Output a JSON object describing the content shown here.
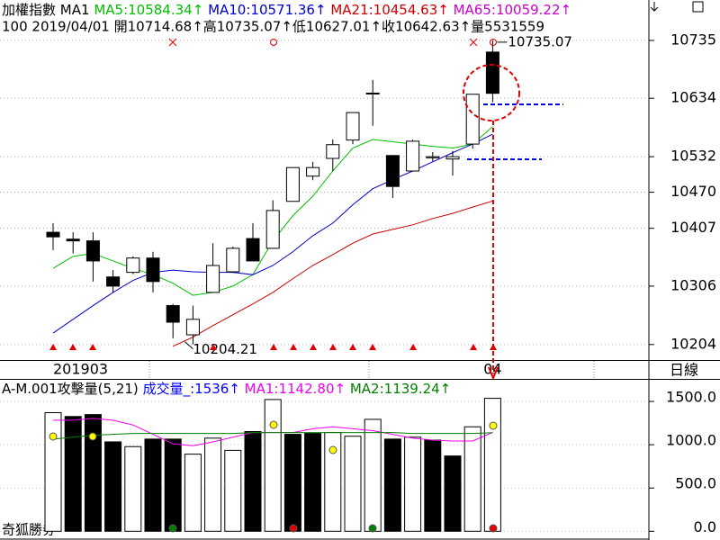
{
  "chart_data": [
    {
      "type": "candlestick",
      "title": "加權指數",
      "indicator": "MA1",
      "info": "100 2019/04/01 開10714.68↑高10735.07↑低10627.01↑收10642.63↑量5531559",
      "period": "日線",
      "categories": [
        "201903",
        null,
        null,
        null,
        null,
        null,
        null,
        null,
        null,
        null,
        null,
        null,
        null,
        null,
        null,
        null,
        null,
        null,
        null,
        null,
        null,
        null,
        "04"
      ],
      "open": [
        10400,
        10388,
        10385,
        10322,
        10330,
        10355,
        10272,
        10221,
        10295,
        10331,
        10389,
        10372,
        10454,
        10498,
        10529,
        10561,
        10642,
        10534,
        10507,
        10530,
        10528,
        10554,
        10714.68
      ],
      "high": [
        10416,
        10400,
        10400,
        10334,
        10358,
        10366,
        10275,
        10272,
        10381,
        10375,
        10416,
        10456,
        10513,
        10523,
        10562,
        10609,
        10666,
        10534,
        10562,
        10540,
        10542,
        10641,
        10735.07
      ],
      "low": [
        10369,
        10363,
        10314,
        10295,
        10327,
        10295,
        10215,
        10204.21,
        10295,
        10329,
        10350,
        10372,
        10454,
        10491,
        10507,
        10554,
        10586,
        10460,
        10507,
        10524,
        10499,
        10546,
        10627.01
      ],
      "close": [
        10392,
        10385,
        10350,
        10306,
        10355,
        10314,
        10243,
        10248,
        10342,
        10372,
        10350,
        10438,
        10513,
        10513,
        10553,
        10609,
        10643,
        10480,
        10559,
        10532,
        10532,
        10641,
        10642.63
      ],
      "up_color": "#ffffff",
      "down_color": "#000000",
      "series": [
        {
          "name": "MA5:10584.34↑",
          "color": "#00c000",
          "values": [
            10337,
            10358,
            10363,
            10350,
            10337,
            10326,
            10311,
            10290,
            10295,
            10306,
            10326,
            10385,
            10429,
            10463,
            10507,
            10547,
            10562,
            10558,
            10554,
            10550,
            10547,
            10554,
            10584.34
          ]
        },
        {
          "name": "MA10:10571.36↑",
          "color": "#0000cc",
          "values": [
            10224,
            10248,
            10272,
            10295,
            10316,
            10330,
            10334,
            10331,
            10330,
            10330,
            10326,
            10342,
            10366,
            10394,
            10416,
            10448,
            10476,
            10492,
            10507,
            10523,
            10539,
            10554,
            10571.36
          ]
        },
        {
          "name": "MA21:10454.63↑",
          "color": "#cc0000",
          "values": [
            null,
            null,
            null,
            null,
            null,
            null,
            10201,
            10217,
            10237,
            10256,
            10275,
            10295,
            10319,
            10342,
            10361,
            10381,
            10397,
            10405,
            10413,
            10424,
            10433,
            10444,
            10454.63
          ]
        },
        {
          "name": "MA65:10059.22↑",
          "color": "#cc00cc",
          "values": [
            null,
            null,
            null,
            null,
            null,
            null,
            null,
            null,
            null,
            null,
            null,
            null,
            null,
            null,
            null,
            null,
            null,
            null,
            null,
            null,
            null,
            null,
            null
          ]
        }
      ],
      "ylim": [
        10177,
        10771
      ],
      "yticks": [
        10204,
        10306,
        10407,
        10470,
        10532,
        10634,
        10735
      ],
      "grid": true
    },
    {
      "type": "bar",
      "title": "A-M.001攻擊量(5,21)",
      "watermark": "奇狐勝券",
      "series": [
        {
          "name": "成交量_:1536↑",
          "color": "#0000ff",
          "values": [
            1370,
            1326,
            1348,
            1033,
            978,
            1065,
            1065,
            891,
            1076,
            935,
            1152,
            1522,
            1120,
            1130,
            1141,
            1098,
            1293,
            1065,
            1087,
            1054,
            870,
            1207,
            1536
          ],
          "bar_colors": [
            "#ffffff",
            "#000000",
            "#000000",
            "#000000",
            "#ffffff",
            "#000000",
            "#000000",
            "#ffffff",
            "#ffffff",
            "#ffffff",
            "#000000",
            "#ffffff",
            "#000000",
            "#000000",
            "#ffffff",
            "#ffffff",
            "#ffffff",
            "#000000",
            "#ffffff",
            "#000000",
            "#000000",
            "#ffffff",
            "#ffffff"
          ]
        },
        {
          "name": "MA1:1142.80↑",
          "color": "#ee00ee",
          "values": [
            1283,
            1283,
            1304,
            1283,
            1228,
            1120,
            1011,
            989,
            1033,
            1087,
            1141,
            1141,
            1141,
            1185,
            1207,
            1185,
            1163,
            1120,
            1076,
            1054,
            1043,
            1043,
            1142.8
          ]
        },
        {
          "name": "MA2:1139.24↑",
          "color": "#008000",
          "values": [
            1065,
            1087,
            1109,
            1120,
            1130,
            1130,
            1130,
            1130,
            1130,
            1130,
            1141,
            1141,
            1141,
            1141,
            1141,
            1141,
            1141,
            1141,
            1130,
            1130,
            1130,
            1130,
            1139.24
          ]
        }
      ],
      "ylim": [
        -80,
        1750
      ],
      "yticks": [
        {
          "value": 1500,
          "label": "1500.0"
        },
        {
          "value": 1000,
          "label": "1000.0"
        },
        {
          "value": 500,
          "label": "500.0"
        },
        {
          "value": 0,
          "label": "0.0"
        }
      ],
      "grid": true
    }
  ]
}
